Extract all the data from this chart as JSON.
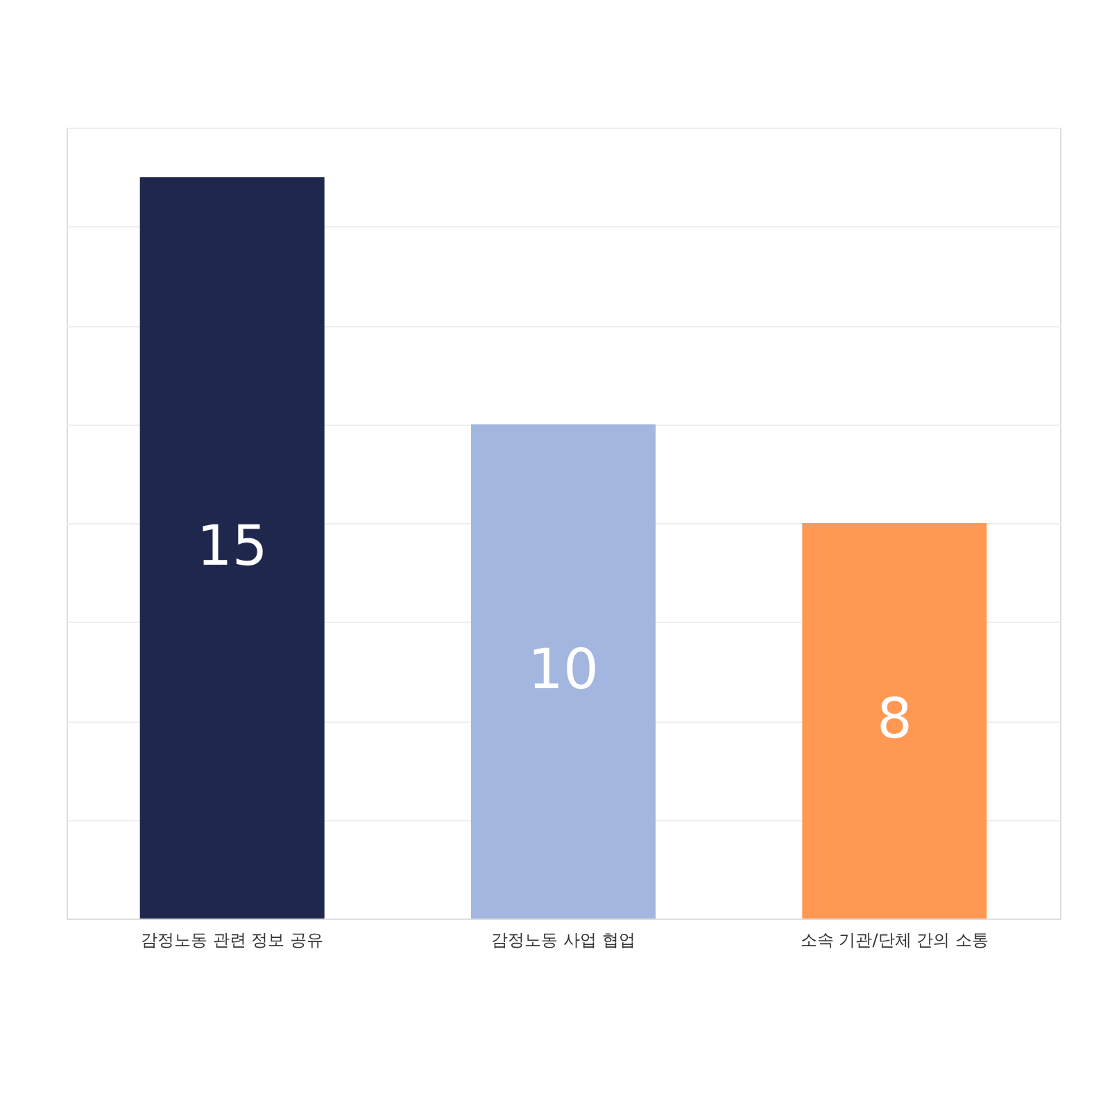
{
  "chart_data": {
    "type": "bar",
    "categories": [
      "감정노동 관련 정보 공유",
      "감정노동 사업 협업",
      "소속 기관/단체 간의 소통"
    ],
    "values": [
      15,
      10,
      8
    ],
    "colors": [
      "#1f284c",
      "#a3b6df",
      "#ff9852"
    ],
    "ylim": [
      0,
      16
    ],
    "yticks": [
      0,
      2,
      4,
      6,
      8,
      10,
      12,
      14,
      16
    ],
    "grid": "y",
    "tick_labels": "x",
    "data_labels": true
  }
}
